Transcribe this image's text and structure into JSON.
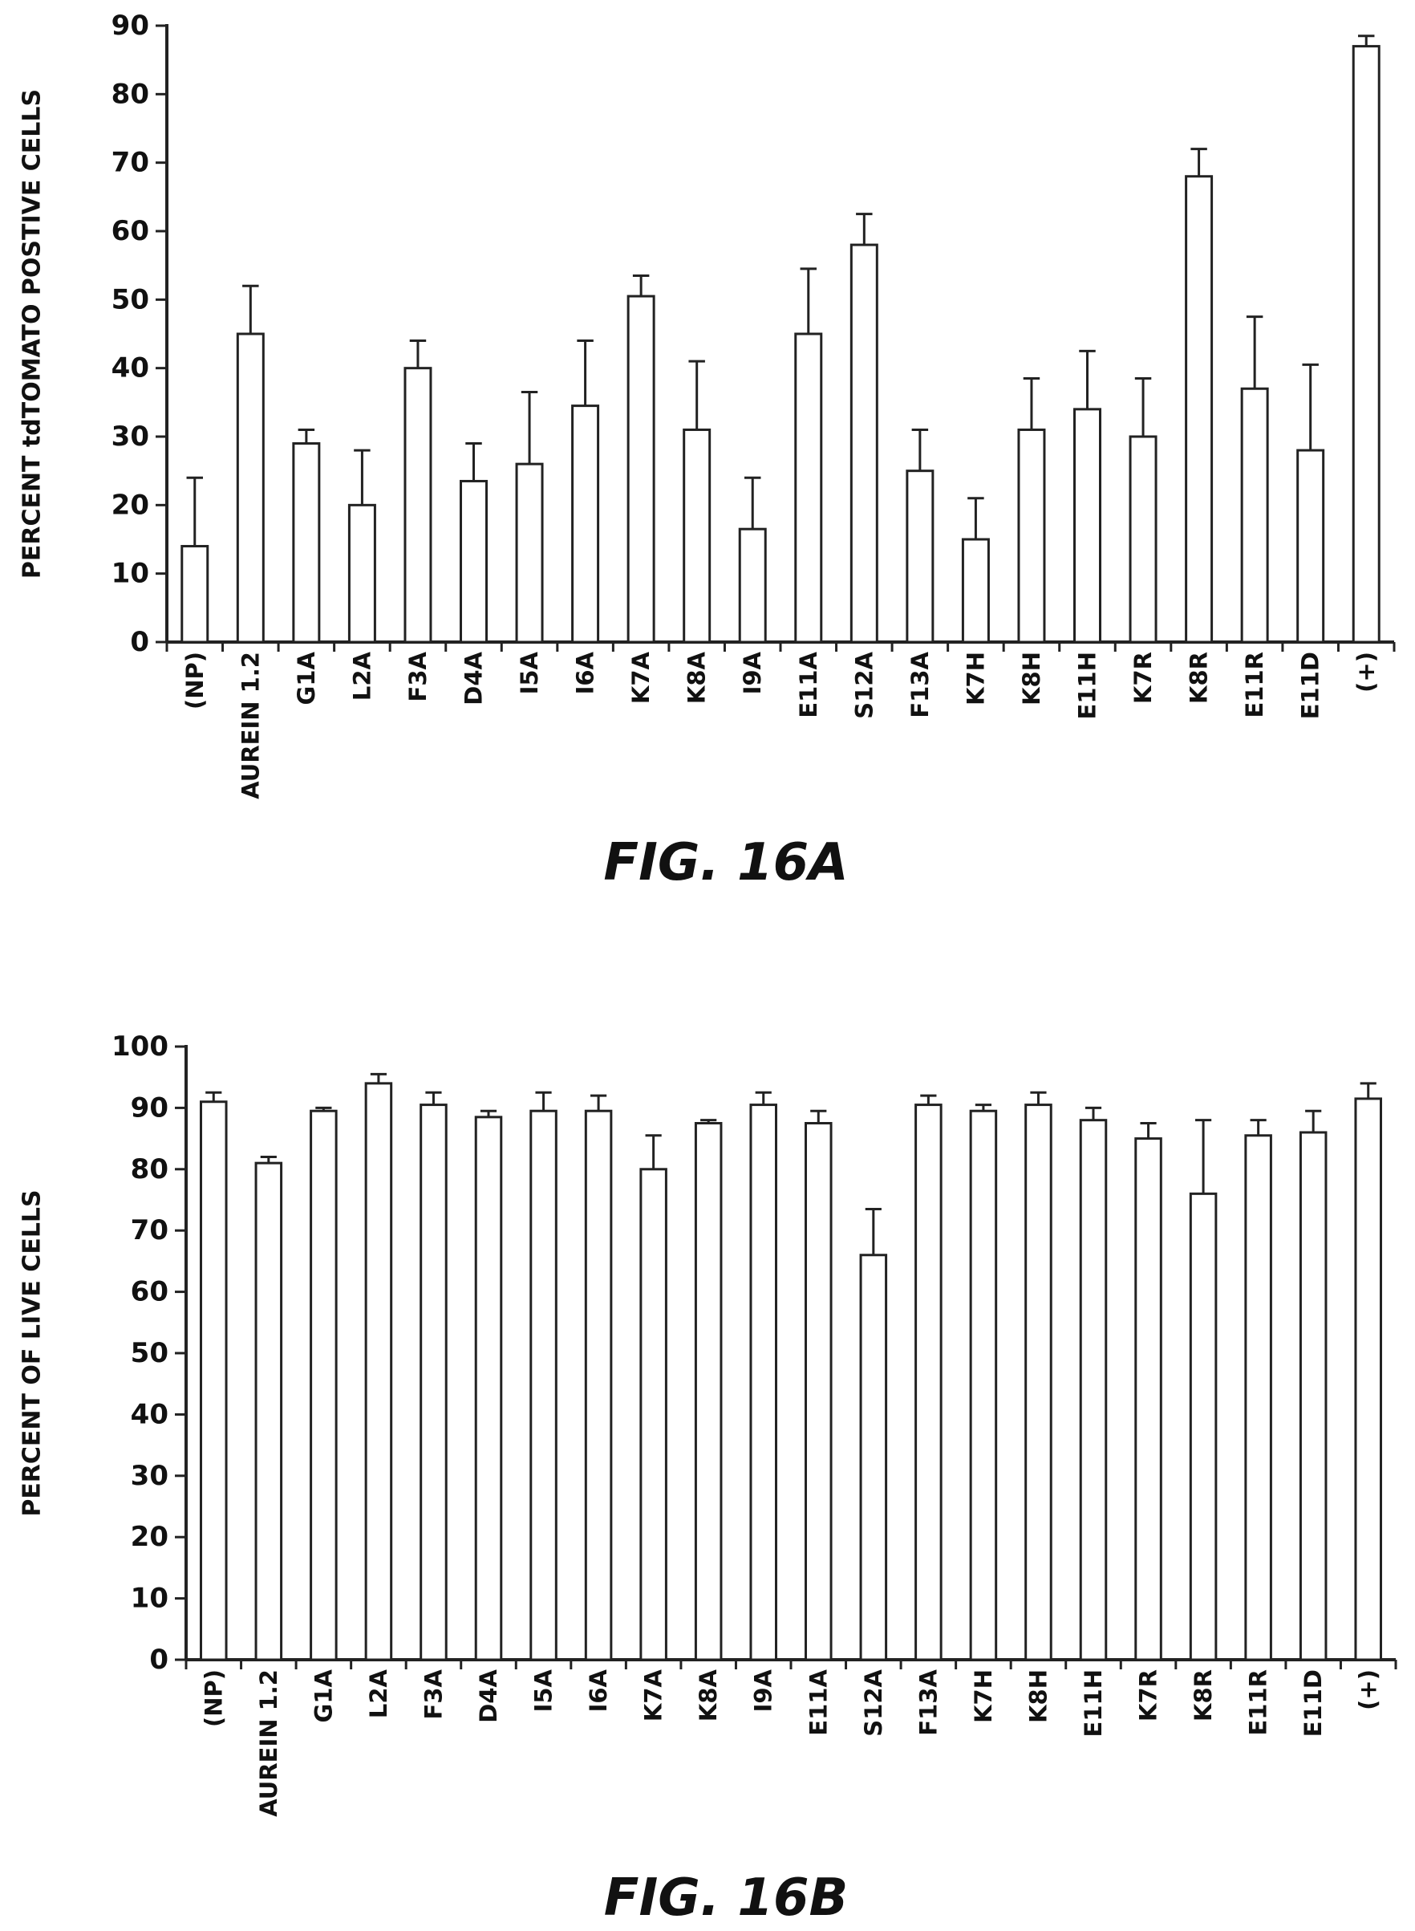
{
  "chart_data": [
    {
      "type": "bar",
      "title": "",
      "caption": "FIG. 16A",
      "xlabel": "",
      "ylabel": "PERCENT tdTOMATO POSTIVE CELLS",
      "ylim": [
        0,
        90
      ],
      "yticks": [
        0,
        10,
        20,
        30,
        40,
        50,
        60,
        70,
        80,
        90
      ],
      "grid": false,
      "categories": [
        "(NP)",
        "AUREIN 1.2",
        "G1A",
        "L2A",
        "F3A",
        "D4A",
        "I5A",
        "I6A",
        "K7A",
        "K8A",
        "I9A",
        "E11A",
        "S12A",
        "F13A",
        "K7H",
        "K8H",
        "E11H",
        "K7R",
        "K8R",
        "E11R",
        "E11D",
        "(+)"
      ],
      "values": [
        14,
        45,
        29,
        20,
        40,
        23.5,
        26,
        34.5,
        50.5,
        31,
        16.5,
        45,
        58,
        25,
        15,
        31,
        34,
        30,
        68,
        37,
        28,
        87
      ],
      "error_upper": [
        24,
        52,
        31,
        28,
        44,
        29,
        36.5,
        44,
        53.5,
        41,
        24,
        54.5,
        62.5,
        31,
        21,
        38.5,
        42.5,
        38.5,
        72,
        47.5,
        40.5,
        88.5
      ]
    },
    {
      "type": "bar",
      "title": "",
      "caption": "FIG. 16B",
      "xlabel": "",
      "ylabel": "PERCENT OF LIVE CELLS",
      "ylim": [
        0,
        100
      ],
      "yticks": [
        0,
        10,
        20,
        30,
        40,
        50,
        60,
        70,
        80,
        90,
        100
      ],
      "grid": false,
      "categories": [
        "(NP)",
        "AUREIN 1.2",
        "G1A",
        "L2A",
        "F3A",
        "D4A",
        "I5A",
        "I6A",
        "K7A",
        "K8A",
        "I9A",
        "E11A",
        "S12A",
        "F13A",
        "K7H",
        "K8H",
        "E11H",
        "K7R",
        "K8R",
        "E11R",
        "E11D",
        "(+)"
      ],
      "values": [
        91,
        81,
        89.5,
        94,
        90.5,
        88.5,
        89.5,
        89.5,
        80,
        87.5,
        90.5,
        87.5,
        66,
        90.5,
        89.5,
        90.5,
        88,
        85,
        76,
        85.5,
        86,
        91.5
      ],
      "error_upper": [
        92.5,
        82,
        90,
        95.5,
        92.5,
        89.5,
        92.5,
        92,
        85.5,
        88,
        92.5,
        89.5,
        73.5,
        92,
        90.5,
        92.5,
        90,
        87.5,
        88,
        88,
        89.5,
        94
      ]
    }
  ]
}
